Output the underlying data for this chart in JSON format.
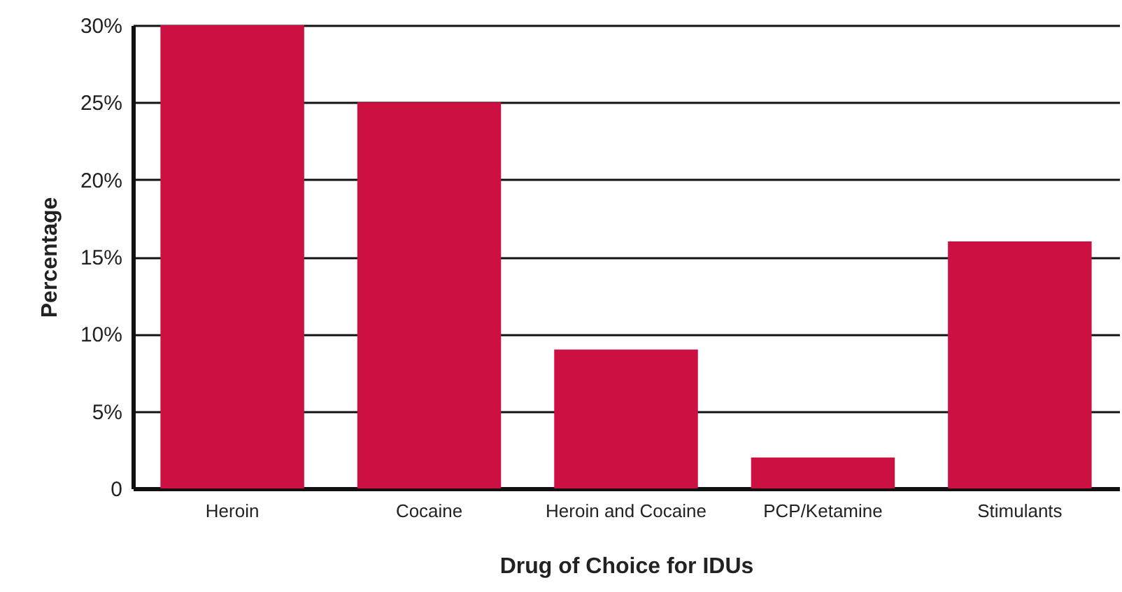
{
  "chart_data": {
    "type": "bar",
    "xlabel": "Drug of Choice for IDUs",
    "ylabel": "Percentage",
    "categories": [
      "Heroin",
      "Cocaine",
      "Heroin and Cocaine",
      "PCP/Ketamine",
      "Stimulants"
    ],
    "values": [
      30,
      25,
      9,
      2,
      16
    ],
    "color": "#cc1041",
    "ylim": [
      0,
      30
    ],
    "yticks": [
      {
        "value": 0,
        "label": "0"
      },
      {
        "value": 5,
        "label": "5%"
      },
      {
        "value": 10,
        "label": "10%"
      },
      {
        "value": 15,
        "label": "15%"
      },
      {
        "value": 20,
        "label": "20%"
      },
      {
        "value": 25,
        "label": "25%"
      },
      {
        "value": 30,
        "label": "30%"
      }
    ],
    "grid": "y"
  }
}
